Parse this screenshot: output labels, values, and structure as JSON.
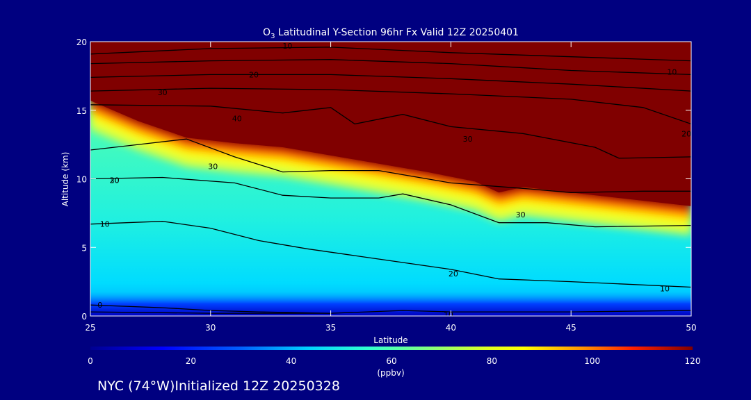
{
  "chart_data": {
    "type": "heatmap",
    "title_prefix": "O",
    "title_sub": "3",
    "title_rest": " Latitudinal Y-Section 96hr  Fx Valid 12Z 20250401",
    "xlabel": "Latitude",
    "ylabel": "Altitude (km)",
    "xlim": [
      25,
      50
    ],
    "ylim": [
      0,
      20
    ],
    "x_ticks": [
      25,
      30,
      35,
      40,
      45,
      50
    ],
    "y_ticks": [
      0,
      5,
      10,
      15,
      20
    ],
    "colorbar": {
      "label": "(ppbv)",
      "range": [
        0,
        120
      ],
      "ticks": [
        0,
        20,
        40,
        60,
        80,
        100,
        120
      ]
    },
    "tropopause_km": [
      [
        25,
        15.5
      ],
      [
        27,
        14.0
      ],
      [
        29,
        12.8
      ],
      [
        31,
        12.4
      ],
      [
        33,
        12.1
      ],
      [
        35,
        11.5
      ],
      [
        37,
        10.9
      ],
      [
        39,
        10.3
      ],
      [
        41,
        9.6
      ],
      [
        42,
        8.8
      ],
      [
        43,
        9.2
      ],
      [
        45,
        8.8
      ],
      [
        47,
        8.4
      ],
      [
        50,
        7.8
      ]
    ],
    "contours": [
      {
        "level": "10",
        "points": [
          [
            25,
            19.1
          ],
          [
            30,
            19.5
          ],
          [
            35,
            19.6
          ],
          [
            40,
            19.2
          ],
          [
            45,
            18.9
          ],
          [
            50,
            18.6
          ]
        ]
      },
      {
        "level": "10",
        "points": [
          [
            25,
            18.4
          ],
          [
            30,
            18.6
          ],
          [
            35,
            18.7
          ],
          [
            40,
            18.4
          ],
          [
            45,
            17.9
          ],
          [
            50,
            17.6
          ]
        ]
      },
      {
        "level": "20",
        "points": [
          [
            25,
            17.4
          ],
          [
            30,
            17.6
          ],
          [
            35,
            17.6
          ],
          [
            40,
            17.3
          ],
          [
            45,
            16.9
          ],
          [
            50,
            16.4
          ]
        ]
      },
      {
        "level": "30",
        "points": [
          [
            25,
            16.4
          ],
          [
            30,
            16.6
          ],
          [
            35,
            16.5
          ],
          [
            40,
            16.2
          ],
          [
            45,
            15.8
          ],
          [
            48,
            15.2
          ],
          [
            50,
            14.0
          ]
        ]
      },
      {
        "level": "40",
        "points": [
          [
            25,
            15.4
          ],
          [
            30,
            15.3
          ],
          [
            33,
            14.8
          ],
          [
            35,
            15.2
          ],
          [
            36,
            14.0
          ],
          [
            38,
            14.7
          ],
          [
            40,
            13.8
          ],
          [
            43,
            13.3
          ],
          [
            46,
            12.3
          ],
          [
            47,
            11.5
          ],
          [
            50,
            11.6
          ]
        ]
      },
      {
        "level": "30",
        "points": [
          [
            25,
            12.1
          ],
          [
            27,
            12.5
          ],
          [
            29,
            12.9
          ],
          [
            31,
            11.6
          ],
          [
            33,
            10.5
          ],
          [
            35,
            10.6
          ],
          [
            37,
            10.6
          ],
          [
            40,
            9.7
          ],
          [
            43,
            9.3
          ],
          [
            45,
            9.0
          ],
          [
            48,
            9.1
          ],
          [
            50,
            9.1
          ]
        ]
      },
      {
        "level": "20",
        "points": [
          [
            25,
            10.0
          ],
          [
            28,
            10.1
          ],
          [
            31,
            9.7
          ],
          [
            33,
            8.8
          ],
          [
            35,
            8.6
          ],
          [
            37,
            8.6
          ],
          [
            38,
            8.9
          ],
          [
            40,
            8.1
          ],
          [
            42,
            6.8
          ],
          [
            44,
            6.8
          ],
          [
            46,
            6.5
          ],
          [
            50,
            6.6
          ]
        ]
      },
      {
        "level": "10",
        "points": [
          [
            25,
            6.7
          ],
          [
            28,
            6.9
          ],
          [
            30,
            6.4
          ],
          [
            32,
            5.5
          ],
          [
            34,
            4.9
          ],
          [
            36,
            4.4
          ],
          [
            38,
            3.9
          ],
          [
            40,
            3.4
          ],
          [
            42,
            2.7
          ],
          [
            45,
            2.5
          ],
          [
            50,
            2.1
          ]
        ]
      },
      {
        "level": "0",
        "points": [
          [
            25,
            0.8
          ],
          [
            28,
            0.6
          ],
          [
            30,
            0.4
          ],
          [
            32,
            0.3
          ],
          [
            35,
            0.2
          ]
        ]
      },
      {
        "level": "10",
        "points": [
          [
            25,
            0.3
          ],
          [
            30,
            0.2
          ],
          [
            35,
            0.2
          ],
          [
            38,
            0.4
          ],
          [
            40,
            0.3
          ],
          [
            45,
            0.3
          ],
          [
            50,
            0.4
          ]
        ]
      }
    ],
    "contour_labels": [
      {
        "text": "10",
        "x": 33.2,
        "y": 19.7
      },
      {
        "text": "20",
        "x": 31.8,
        "y": 17.6
      },
      {
        "text": "30",
        "x": 28.0,
        "y": 16.3
      },
      {
        "text": "40",
        "x": 31.1,
        "y": 14.4
      },
      {
        "text": "10",
        "x": 49.2,
        "y": 17.8
      },
      {
        "text": "30",
        "x": 26.0,
        "y": 9.9
      },
      {
        "text": "20",
        "x": 26.0,
        "y": 9.9
      },
      {
        "text": "30",
        "x": 42.9,
        "y": 7.4
      },
      {
        "text": "30",
        "x": 40.7,
        "y": 12.9
      },
      {
        "text": "20",
        "x": 49.8,
        "y": 13.3
      },
      {
        "text": "30",
        "x": 30.1,
        "y": 10.9
      },
      {
        "text": "10",
        "x": 25.6,
        "y": 6.7
      },
      {
        "text": "20",
        "x": 40.1,
        "y": 3.1
      },
      {
        "text": "10",
        "x": 48.9,
        "y": 2.0
      },
      {
        "text": "0",
        "x": 25.4,
        "y": 0.8
      },
      {
        "text": "10",
        "x": 39.9,
        "y": 0.1
      }
    ]
  },
  "footer": "NYC (74°W)Initialized 12Z 20250328"
}
